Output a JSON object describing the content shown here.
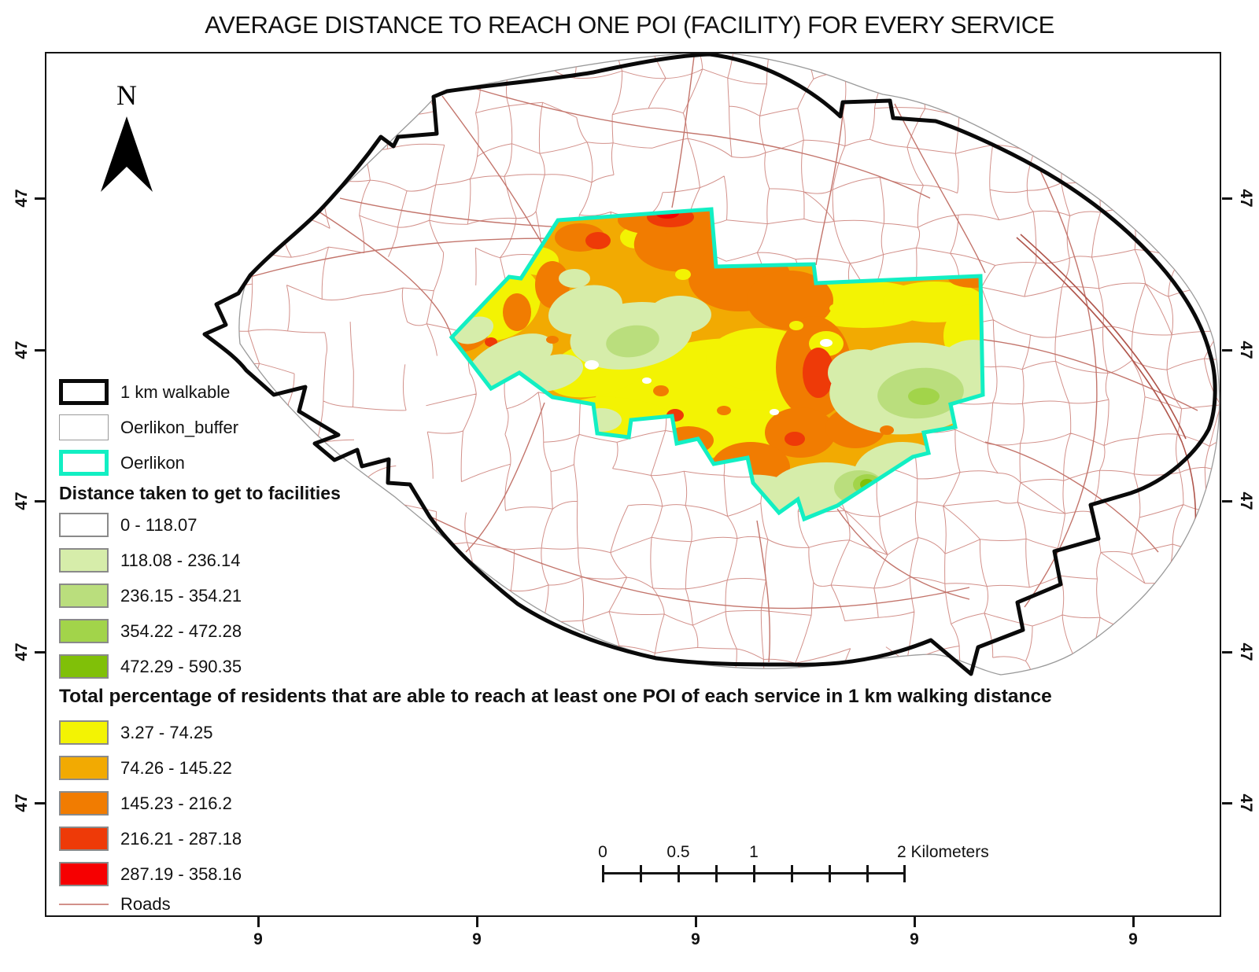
{
  "title": "AVERAGE DISTANCE TO REACH ONE POI (FACILITY) FOR EVERY SERVICE",
  "north_label": "N",
  "legend": {
    "layers": [
      {
        "label": "1 km walkable",
        "outline": "#0a0a0a"
      },
      {
        "label": "Oerlikon_buffer",
        "outline": "#9a9a9a"
      },
      {
        "label": "Oerlikon",
        "outline": "#12efc3"
      }
    ],
    "distance_heading": "Distance taken to get to facilities",
    "distance_classes": [
      {
        "range": "0 - 118.07",
        "color": "#ffffff"
      },
      {
        "range": "118.08 - 236.14",
        "color": "#d6edaa"
      },
      {
        "range": "236.15 - 354.21",
        "color": "#bade7d"
      },
      {
        "range": "354.22 - 472.28",
        "color": "#a2d44a"
      },
      {
        "range": "472.29 - 590.35",
        "color": "#80c008"
      }
    ],
    "percent_heading": "Total percentage of residents that are able to reach at least one POI of each service in 1 km walking distance",
    "percent_classes": [
      {
        "range": "3.27 - 74.25",
        "color": "#f3f303"
      },
      {
        "range": "74.26 - 145.22",
        "color": "#f2aa02"
      },
      {
        "range": "145.23 - 216.2",
        "color": "#f17c01"
      },
      {
        "range": "216.21 - 287.18",
        "color": "#ee3a08"
      },
      {
        "range": "287.19 - 358.16",
        "color": "#f60001"
      }
    ],
    "roads": {
      "label": "Roads",
      "color": "#d2908a"
    }
  },
  "scalebar": {
    "labels": [
      "0",
      "0.5",
      "1"
    ],
    "end_label": "2 Kilometers"
  },
  "axes": {
    "left": [
      "47",
      "47",
      "47",
      "47",
      "47"
    ],
    "right": [
      "47",
      "47",
      "47",
      "47",
      "47"
    ],
    "bottom": [
      "9",
      "9",
      "9",
      "9",
      "9"
    ]
  },
  "map_colors": {
    "roads": "#d2908a",
    "arterial": "#c3756c",
    "railway": "#b0564c",
    "walkable_outline": "#0a0a0a",
    "buffer_outline": "#9a9a9a",
    "oerlikon_outline": "#12efc3",
    "oerlikon_base": "#f2aa02"
  }
}
